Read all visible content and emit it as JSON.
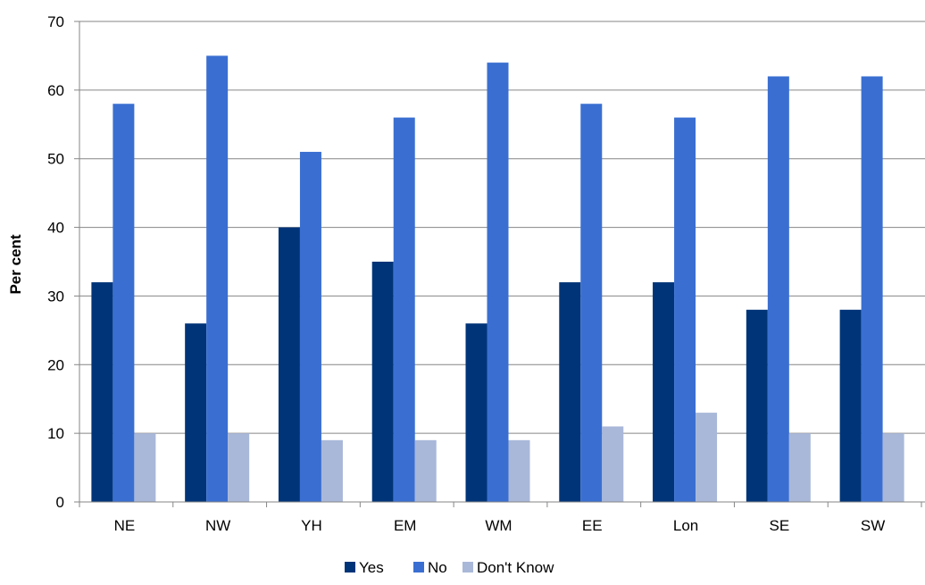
{
  "chart_data": {
    "type": "bar",
    "title": "",
    "xlabel": "",
    "ylabel": "Per cent",
    "ylim": [
      0,
      70
    ],
    "yticks": [
      0,
      10,
      20,
      30,
      40,
      50,
      60,
      70
    ],
    "grid": true,
    "legend_position": "bottom",
    "categories": [
      "NE",
      "NW",
      "YH",
      "EM",
      "WM",
      "EE",
      "Lon",
      "SE",
      "SW"
    ],
    "series": [
      {
        "name": "Yes",
        "color": "#003478",
        "values": [
          32,
          26,
          40,
          35,
          26,
          32,
          32,
          28,
          28
        ]
      },
      {
        "name": "No",
        "color": "#3a6fd1",
        "values": [
          58,
          65,
          51,
          56,
          64,
          58,
          56,
          62,
          62
        ]
      },
      {
        "name": "Don't Know",
        "color": "#a9b8d9",
        "values": [
          10,
          10,
          9,
          9,
          9,
          11,
          13,
          10,
          10
        ]
      }
    ]
  }
}
